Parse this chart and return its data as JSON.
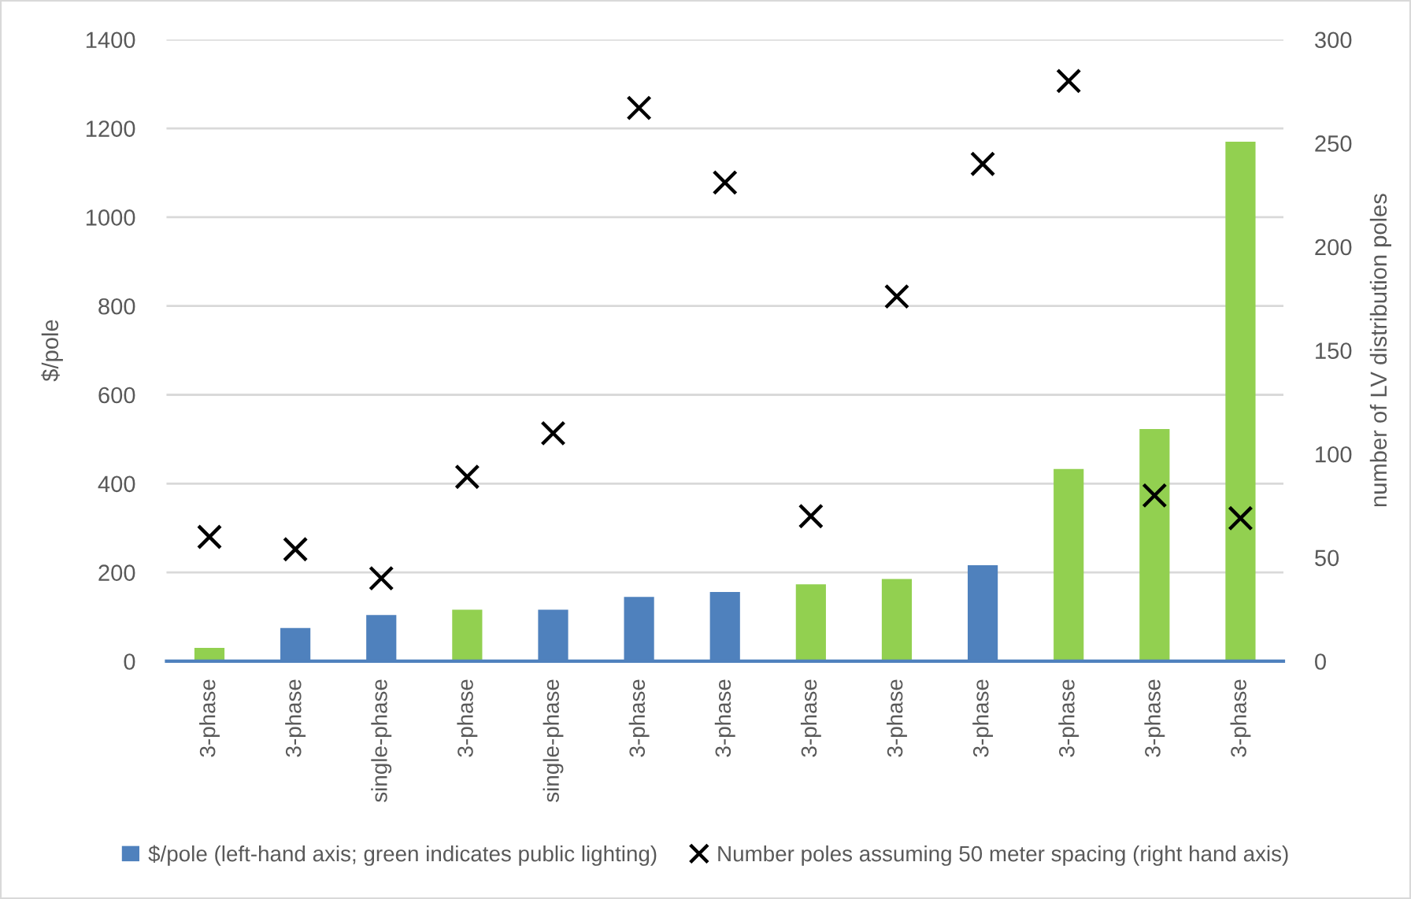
{
  "chart_data": {
    "type": "bar",
    "ylabel": "$/pole",
    "y2label": "number of LV distribution poles",
    "categories": [
      "3-phase",
      "3-phase",
      "single-phase",
      "3-phase",
      "single-phase",
      "3-phase",
      "3-phase",
      "3-phase",
      "3-phase",
      "3-phase",
      "3-phase",
      "3-phase",
      "3-phase"
    ],
    "series": [
      {
        "name": "$/pole (left-hand axis; green indicates public lighting)",
        "color": "#4f81bd",
        "colors": [
          "#92d050",
          "#4f81bd",
          "#4f81bd",
          "#92d050",
          "#4f81bd",
          "#4f81bd",
          "#4f81bd",
          "#92d050",
          "#92d050",
          "#4f81bd",
          "#92d050",
          "#92d050",
          "#92d050"
        ],
        "values": [
          30,
          75,
          104,
          116,
          116,
          145,
          156,
          173,
          185,
          216,
          433,
          523,
          1170
        ]
      },
      {
        "name": "Number poles assuming 50 meter spacing (right hand axis)",
        "type": "scatter",
        "axis": "y2",
        "color": "#000000",
        "values": [
          60,
          54,
          40,
          89,
          110,
          267,
          231,
          70,
          176,
          240,
          280,
          80,
          69
        ]
      }
    ],
    "ylim": [
      0,
      1400
    ],
    "yticks": [
      0,
      200,
      400,
      600,
      800,
      1000,
      1200,
      1400
    ],
    "y2lim": [
      0,
      300
    ],
    "y2ticks": [
      0,
      50,
      100,
      150,
      200,
      250,
      300
    ],
    "grid": "y",
    "legend": "bottom",
    "marker": "cross"
  }
}
